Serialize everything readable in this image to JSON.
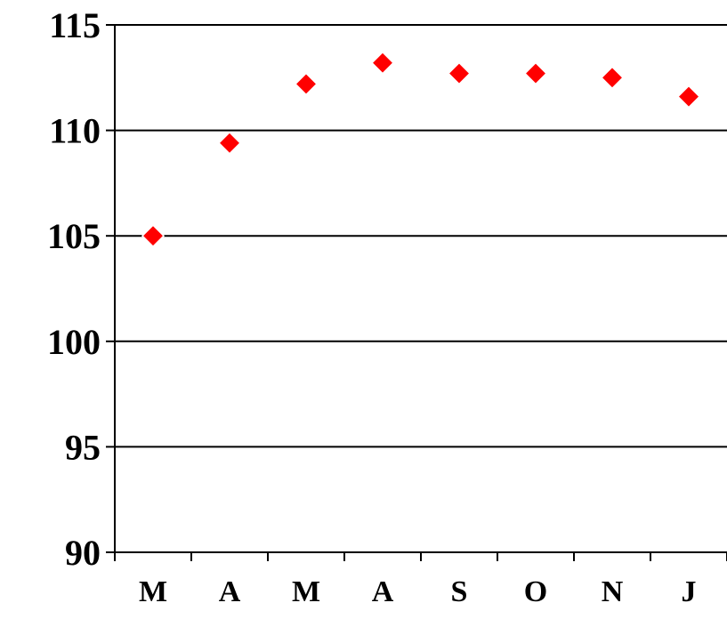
{
  "chart_data": {
    "type": "scatter",
    "title": "",
    "xlabel": "",
    "ylabel": "",
    "categories": [
      "M",
      "A",
      "M",
      "A",
      "S",
      "O",
      "N",
      "J"
    ],
    "values": [
      105.0,
      109.4,
      112.2,
      113.2,
      112.7,
      112.7,
      112.5,
      111.6
    ],
    "ylim": [
      90,
      115
    ],
    "yticks": [
      "90",
      "95",
      "100",
      "105",
      "110",
      "115"
    ],
    "grid": "horizontal",
    "legend": "none",
    "marker": "diamond",
    "marker_color": "#ff0000"
  }
}
